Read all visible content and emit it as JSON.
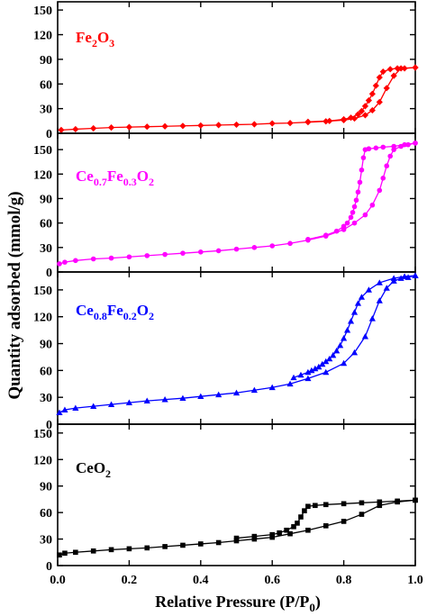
{
  "chart_data": {
    "type": "line",
    "shared_x_axis": {
      "label": "Relative Pressure (P/P",
      "label_sub": "0",
      "label_end": ")",
      "range": [
        0,
        1
      ],
      "ticks": [
        0.0,
        0.2,
        0.4,
        0.6,
        0.8,
        1.0
      ],
      "tick_labels": [
        "0.0",
        "0.2",
        "0.4",
        "0.6",
        "0.8",
        "1.0"
      ]
    },
    "shared_y_label": "Quantity adsorbed (mmol/g)",
    "grid": false,
    "panels": [
      {
        "sample_label": [
          {
            "t": "Fe"
          },
          {
            "t": "2",
            "sub": true
          },
          {
            "t": "O"
          },
          {
            "t": "3",
            "sub": true
          }
        ],
        "color": "#ff0000",
        "marker": "diamond",
        "ylim": [
          0,
          160
        ],
        "yticks": [
          0,
          30,
          60,
          90,
          120,
          150
        ],
        "adsorption": {
          "x": [
            0.01,
            0.05,
            0.1,
            0.15,
            0.2,
            0.25,
            0.3,
            0.35,
            0.4,
            0.45,
            0.5,
            0.55,
            0.6,
            0.65,
            0.7,
            0.75,
            0.8,
            0.83,
            0.86,
            0.88,
            0.9,
            0.92,
            0.94,
            0.96,
            1.0
          ],
          "y": [
            4,
            5,
            6,
            7,
            7.5,
            8,
            8.5,
            9,
            9.5,
            10,
            10.5,
            11,
            12,
            12.5,
            13.5,
            14.5,
            16,
            18,
            22,
            28,
            38,
            55,
            70,
            79,
            80
          ]
        },
        "desorption": {
          "x": [
            1.0,
            0.97,
            0.95,
            0.93,
            0.91,
            0.9,
            0.89,
            0.88,
            0.87,
            0.86,
            0.85,
            0.84,
            0.82,
            0.8,
            0.76,
            0.7
          ],
          "y": [
            80,
            79,
            79,
            78,
            75,
            68,
            58,
            48,
            40,
            33,
            27,
            23,
            19,
            17,
            15,
            14
          ]
        }
      },
      {
        "sample_label": [
          {
            "t": "Ce"
          },
          {
            "t": "0.7",
            "sub": true
          },
          {
            "t": "Fe"
          },
          {
            "t": "0.3",
            "sub": true
          },
          {
            "t": "O"
          },
          {
            "t": "2",
            "sub": true
          }
        ],
        "color": "#ff00ff",
        "marker": "circle",
        "ylim": [
          0,
          170
        ],
        "yticks": [
          0,
          30,
          60,
          90,
          120,
          150
        ],
        "adsorption": {
          "x": [
            0.005,
            0.02,
            0.05,
            0.1,
            0.15,
            0.2,
            0.25,
            0.3,
            0.35,
            0.4,
            0.45,
            0.5,
            0.55,
            0.6,
            0.65,
            0.7,
            0.75,
            0.8,
            0.83,
            0.86,
            0.88,
            0.9,
            0.91,
            0.92,
            0.93,
            0.94,
            0.96,
            0.98,
            1.0
          ],
          "y": [
            10,
            12,
            14,
            16,
            17,
            18.5,
            20,
            21.5,
            23,
            24.5,
            26,
            28,
            30,
            32,
            35,
            39,
            44,
            52,
            60,
            70,
            82,
            100,
            115,
            130,
            142,
            150,
            154,
            156,
            158
          ]
        },
        "desorption": {
          "x": [
            1.0,
            0.97,
            0.94,
            0.91,
            0.89,
            0.87,
            0.86,
            0.855,
            0.85,
            0.845,
            0.84,
            0.835,
            0.83,
            0.825,
            0.82,
            0.81,
            0.8,
            0.78,
            0.75,
            0.7
          ],
          "y": [
            158,
            156,
            154,
            153,
            152,
            151,
            150,
            140,
            125,
            110,
            98,
            88,
            80,
            73,
            67,
            60,
            56,
            50,
            45,
            40
          ]
        }
      },
      {
        "sample_label": [
          {
            "t": "Ce"
          },
          {
            "t": "0.8",
            "sub": true
          },
          {
            "t": "Fe"
          },
          {
            "t": "0.2",
            "sub": true
          },
          {
            "t": "O"
          },
          {
            "t": "2",
            "sub": true
          }
        ],
        "color": "#0000ff",
        "marker": "triangle",
        "ylim": [
          0,
          170
        ],
        "yticks": [
          0,
          30,
          60,
          90,
          120,
          150
        ],
        "adsorption": {
          "x": [
            0.005,
            0.02,
            0.05,
            0.1,
            0.15,
            0.2,
            0.25,
            0.3,
            0.35,
            0.4,
            0.45,
            0.5,
            0.55,
            0.6,
            0.65,
            0.7,
            0.75,
            0.8,
            0.83,
            0.86,
            0.88,
            0.9,
            0.92,
            0.94,
            0.96,
            0.98,
            1.0
          ],
          "y": [
            13,
            16,
            18,
            20,
            22,
            24,
            26,
            27.5,
            29,
            31,
            33,
            35,
            38,
            41,
            45,
            51,
            58,
            68,
            80,
            98,
            118,
            138,
            152,
            160,
            163,
            164,
            166
          ]
        },
        "desorption": {
          "x": [
            1.0,
            0.97,
            0.94,
            0.9,
            0.87,
            0.85,
            0.84,
            0.83,
            0.82,
            0.81,
            0.8,
            0.79,
            0.78,
            0.77,
            0.76,
            0.75,
            0.74,
            0.73,
            0.72,
            0.71,
            0.7,
            0.68,
            0.66
          ],
          "y": [
            166,
            165,
            163,
            158,
            150,
            142,
            135,
            125,
            115,
            105,
            96,
            88,
            82,
            77,
            73,
            70,
            67,
            64,
            62,
            60,
            58,
            55,
            52
          ]
        }
      },
      {
        "sample_label": [
          {
            "t": "CeO"
          },
          {
            "t": "2",
            "sub": true
          }
        ],
        "color": "#000000",
        "marker": "square",
        "ylim": [
          0,
          160
        ],
        "yticks": [
          0,
          30,
          60,
          90,
          120,
          150
        ],
        "adsorption": {
          "x": [
            0.005,
            0.02,
            0.05,
            0.1,
            0.15,
            0.2,
            0.25,
            0.3,
            0.35,
            0.4,
            0.45,
            0.5,
            0.55,
            0.6,
            0.65,
            0.7,
            0.75,
            0.8,
            0.85,
            0.9,
            0.95,
            1.0
          ],
          "y": [
            12,
            14,
            15,
            16.5,
            18,
            19,
            20,
            21.5,
            23,
            24.5,
            26,
            28,
            30,
            32,
            36,
            40,
            45,
            50,
            58,
            68,
            72,
            74
          ]
        },
        "desorption": {
          "x": [
            1.0,
            0.95,
            0.9,
            0.85,
            0.8,
            0.75,
            0.72,
            0.7,
            0.69,
            0.68,
            0.67,
            0.66,
            0.64,
            0.62,
            0.6,
            0.55,
            0.5
          ],
          "y": [
            74,
            73,
            72,
            71,
            70,
            69,
            68,
            67,
            62,
            55,
            48,
            44,
            40,
            37,
            35,
            33,
            31
          ]
        }
      }
    ]
  }
}
